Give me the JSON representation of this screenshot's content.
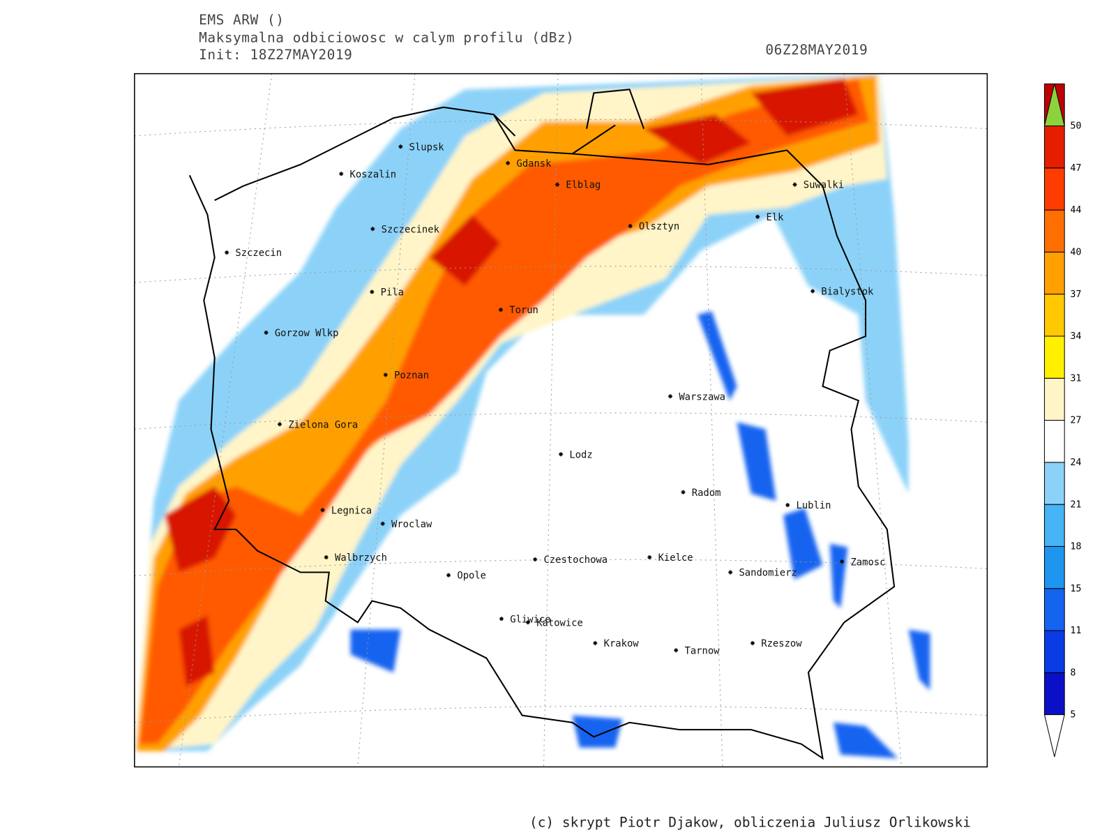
{
  "header": {
    "model": "EMS ARW ()",
    "title": "Maksymalna odbiciowosc w calym profilu (dBz)",
    "init": "Init: 18Z27MAY2019",
    "valid": "06Z28MAY2019"
  },
  "cities": [
    "Slupsk",
    "Koszalin",
    "Gdansk",
    "Elblag",
    "Suwalki",
    "Elk",
    "Olsztyn",
    "Szczecinek",
    "Szczecin",
    "Bialystok",
    "Pila",
    "Torun",
    "Gorzow Wlkp",
    "Poznan",
    "Warszawa",
    "Zielona Gora",
    "Lodz",
    "Radom",
    "Lublin",
    "Legnica",
    "Wroclaw",
    "Walbrzych",
    "Czestochowa",
    "Kielce",
    "Zamosc",
    "Sandomierz",
    "Opole",
    "Gliwice",
    "Katowice",
    "Krakow",
    "Tarnow",
    "Rzeszow"
  ],
  "colorbar": {
    "levels": [
      5,
      8,
      11,
      15,
      18,
      21,
      24,
      27,
      31,
      34,
      37,
      40,
      44,
      47,
      50
    ],
    "colors": [
      "#0a10c8",
      "#0a3ce6",
      "#1464f0",
      "#1e96f0",
      "#46b4f5",
      "#8cd2f8",
      "#ffffff",
      "#fff5c8",
      "#fff000",
      "#ffc800",
      "#ffa000",
      "#ff6e00",
      "#ff3c00",
      "#e61e00",
      "#c00000"
    ],
    "over_color": "#8cd23c",
    "under_color": "#ffffff"
  },
  "footer": "(c) skrypt Piotr Djakow, obliczenia Juliusz Orlikowski"
}
